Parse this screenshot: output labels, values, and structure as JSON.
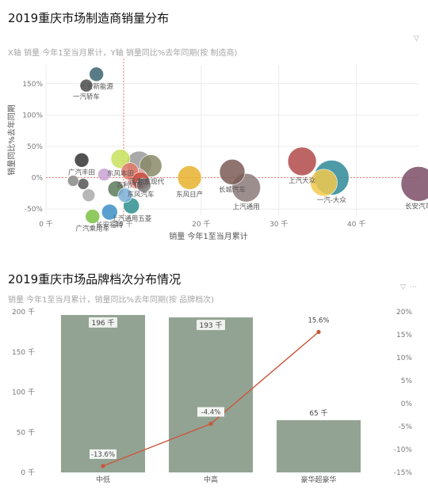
{
  "colors": {
    "bar": "#93a393",
    "line": "#c9573a",
    "grid": "#ececec",
    "refline": "#e8826f",
    "axis_text": "#777777",
    "title": "#111111",
    "subtitle": "#a6a6a6"
  },
  "chart_data": [
    {
      "type": "scatter",
      "title": "2019重庆市场制造商销量分布",
      "subtitle": "X轴 销量 今年1至当月累计，Y轴 销量同比%去年同期(按 制造商)",
      "xlabel": "销量 今年1至当月累计",
      "ylabel": "销量同比%去年同期",
      "xlim": [
        0,
        48
      ],
      "ylim": [
        -60,
        180
      ],
      "x_unit": "千",
      "x_ticks": [
        0,
        10,
        20,
        30,
        40
      ],
      "x_tick_labels": [
        "0 千",
        "10 千",
        "20 千",
        "30 千",
        "40 千"
      ],
      "y_ticks": [
        150,
        100,
        50,
        0,
        -50
      ],
      "y_tick_labels": [
        "150%",
        "100%",
        "50%",
        "0%",
        "-50%"
      ],
      "reference_lines": {
        "x": 10,
        "y": 0
      },
      "grid": true,
      "points": [
        {
          "label": "长安新能源",
          "x": 6.5,
          "y": 165,
          "size": 9,
          "color": "#3c6470"
        },
        {
          "label": "一汽轿车",
          "x": 5.2,
          "y": 147,
          "size": 8,
          "color": "#4d4d4d"
        },
        {
          "label": "广汽丰田",
          "x": 4.6,
          "y": 28,
          "size": 9,
          "color": "#333333"
        },
        {
          "label": "东风本田",
          "x": 9.6,
          "y": 30,
          "size": 12,
          "color": "#c7e05c"
        },
        {
          "label": "汽丰田",
          "x": 12.0,
          "y": 22,
          "size": 16,
          "color": "#9a9a9a"
        },
        {
          "label": "北京现代",
          "x": 13.5,
          "y": 19,
          "size": 14,
          "color": "#8a8a6a"
        },
        {
          "label": "东风日产",
          "x": 18.5,
          "y": 0,
          "size": 15,
          "color": "#e8b22e"
        },
        {
          "label": "长城汽车",
          "x": 24.0,
          "y": 9,
          "size": 16,
          "color": "#7a5a56"
        },
        {
          "label": "上汽通用",
          "x": 25.8,
          "y": -16,
          "size": 18,
          "color": "#8c7a7a"
        },
        {
          "label": "上汽大众",
          "x": 33.0,
          "y": 26,
          "size": 18,
          "color": "#b24a4a"
        },
        {
          "label": "一汽-大众",
          "x": 36.8,
          "y": 0,
          "size": 22,
          "color": "#2e8a98"
        },
        {
          "label": "",
          "x": 35.8,
          "y": -8,
          "size": 17,
          "color": "#f2c94c"
        },
        {
          "label": "长安汽车",
          "x": 48.0,
          "y": -10,
          "size": 22,
          "color": "#7b4d67"
        },
        {
          "label": "吉利汽车",
          "x": 10.8,
          "y": 10,
          "size": 11,
          "color": "#e07a6a"
        },
        {
          "label": "东风汽车",
          "x": 12.2,
          "y": -5,
          "size": 11,
          "color": "#c84b3c"
        },
        {
          "label": "上汽通用五菱",
          "x": 11.0,
          "y": -45,
          "size": 10,
          "color": "#2f8f8f"
        },
        {
          "label": "广汽乘用车",
          "x": 6.0,
          "y": -62,
          "size": 9,
          "color": "#7bc043"
        },
        {
          "label": "长安福特",
          "x": 8.2,
          "y": -55,
          "size": 10,
          "color": "#3d8fc6"
        },
        {
          "label": "",
          "x": 11.8,
          "y": -2,
          "size": 13,
          "color": "#e0a0a0"
        },
        {
          "label": "",
          "x": 12.6,
          "y": -12,
          "size": 9,
          "color": "#7a7a7a"
        },
        {
          "label": "",
          "x": 9.0,
          "y": -18,
          "size": 10,
          "color": "#5c7a5c"
        },
        {
          "label": "",
          "x": 4.8,
          "y": -10,
          "size": 7,
          "color": "#555555"
        },
        {
          "label": "",
          "x": 3.5,
          "y": -5,
          "size": 7,
          "color": "#888888"
        },
        {
          "label": "",
          "x": 5.5,
          "y": -28,
          "size": 8,
          "color": "#aaaaaa"
        },
        {
          "label": "",
          "x": 7.5,
          "y": 5,
          "size": 8,
          "color": "#c9a3d6"
        },
        {
          "label": "",
          "x": 10.2,
          "y": -28,
          "size": 9,
          "color": "#7ab0d8"
        }
      ]
    },
    {
      "type": "bar",
      "title": "2019重庆市场品牌档次分布情况",
      "subtitle": "销量 今年1至当月累计，销量同比%去年同期(按 品牌档次)",
      "categories": [
        "中低",
        "中高",
        "豪华超豪华"
      ],
      "values": [
        196,
        193,
        65
      ],
      "value_labels": [
        "196 千",
        "193 千",
        "65 千"
      ],
      "line_values": [
        -13.6,
        -4.4,
        15.6
      ],
      "line_labels": [
        "-13.6%",
        "-4.4%",
        "15.6%"
      ],
      "ylim": [
        0,
        200
      ],
      "y_ticks": [
        0,
        50,
        100,
        150,
        200
      ],
      "y_tick_labels": [
        "0 千",
        "50 千",
        "100 千",
        "150 千",
        "200 千"
      ],
      "y2lim": [
        -15,
        20
      ],
      "y2_ticks": [
        20,
        15,
        10,
        5,
        0,
        -5,
        -10,
        -15
      ],
      "y2_tick_labels": [
        "20%",
        "15%",
        "10%",
        "5%",
        "0%",
        "-5%",
        "-10%",
        "-15%"
      ],
      "grid": false
    }
  ]
}
